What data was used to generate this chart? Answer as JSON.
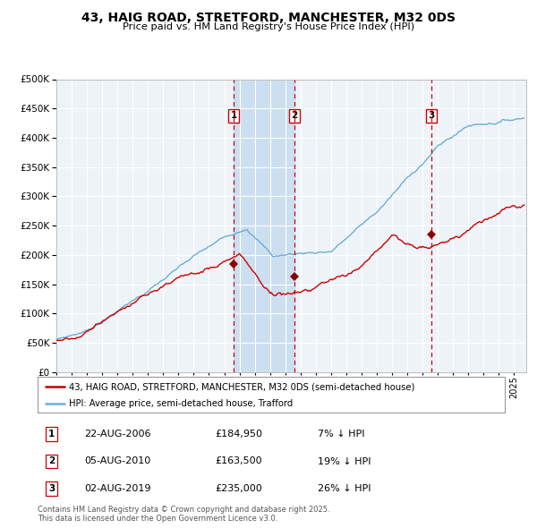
{
  "title": "43, HAIG ROAD, STRETFORD, MANCHESTER, M32 0DS",
  "subtitle": "Price paid vs. HM Land Registry's House Price Index (HPI)",
  "legend_line1": "43, HAIG ROAD, STRETFORD, MANCHESTER, M32 0DS (semi-detached house)",
  "legend_line2": "HPI: Average price, semi-detached house, Trafford",
  "transactions": [
    {
      "num": 1,
      "date": "22-AUG-2006",
      "price": 184950,
      "pct": "7%",
      "dir": "↓"
    },
    {
      "num": 2,
      "date": "05-AUG-2010",
      "price": 163500,
      "pct": "19%",
      "dir": "↓"
    },
    {
      "num": 3,
      "date": "02-AUG-2019",
      "price": 235000,
      "pct": "26%",
      "dir": "↓"
    }
  ],
  "transaction_dates_decimal": [
    2006.638,
    2010.589,
    2019.589
  ],
  "transaction_prices": [
    184950,
    163500,
    235000
  ],
  "shade_regions": [
    [
      2006.638,
      2010.589
    ]
  ],
  "hpi_color": "#6aaed6",
  "price_color": "#cc0000",
  "marker_color": "#880000",
  "background_color": "#ffffff",
  "plot_bg_color": "#eef3f8",
  "grid_color": "#ffffff",
  "vline_color": "#cc0000",
  "shade_color": "#ccdff0",
  "footer": "Contains HM Land Registry data © Crown copyright and database right 2025.\nThis data is licensed under the Open Government Licence v3.0.",
  "ylim": [
    0,
    500000
  ],
  "yticks": [
    0,
    50000,
    100000,
    150000,
    200000,
    250000,
    300000,
    350000,
    400000,
    450000,
    500000
  ],
  "xlim_start": 1995.0,
  "xlim_end": 2025.8
}
